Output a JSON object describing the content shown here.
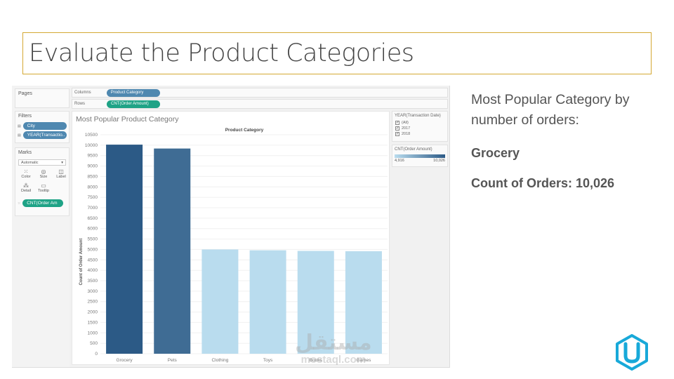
{
  "slide": {
    "title": "Evaluate the Product Categories"
  },
  "side": {
    "question": "Most Popular Category by number of orders:",
    "answer": "Grocery",
    "count_label": "Count of Orders: 10,026"
  },
  "tableau": {
    "pages_label": "Pages",
    "filters_label": "Filters",
    "filters": [
      "City",
      "YEAR(Transactio.."
    ],
    "marks_label": "Marks",
    "marks_type": "Automatic",
    "marks_buttons": [
      {
        "icon": "color-icon",
        "glyph": "⁙",
        "label": "Color"
      },
      {
        "icon": "size-icon",
        "glyph": "◎",
        "label": "Size"
      },
      {
        "icon": "label-icon",
        "glyph": "◫",
        "label": "Label"
      },
      {
        "icon": "detail-icon",
        "glyph": "⁂",
        "label": "Detail"
      },
      {
        "icon": "tooltip-icon",
        "glyph": "▭",
        "label": "Tooltip"
      }
    ],
    "marks_field": "CNT(Order Am",
    "columns_label": "Columns",
    "columns_pill": "Product Category",
    "rows_label": "Rows",
    "rows_pill": "CNT(Order Amount)",
    "view_title": "Most Popular Product Category",
    "filter_card": {
      "title": "YEAR(Transaction Date)",
      "options": [
        {
          "label": "(All)",
          "checked": "✓"
        },
        {
          "label": "2017",
          "checked": "✓"
        },
        {
          "label": "2018",
          "checked": "✓"
        }
      ]
    },
    "legend": {
      "title": "CNT(Order Amount)",
      "min_label": "4,916",
      "max_label": "10,026"
    }
  },
  "watermark": {
    "arabic": "مستقل",
    "latin": "mostaql.com"
  },
  "colors": {
    "title_border": "#d4a833",
    "bar_max": "#2c5a86",
    "bar_min": "#b9dcee",
    "logo": "#18a9d9"
  },
  "chart_data": {
    "type": "bar",
    "title": "Product Category",
    "xlabel": "",
    "ylabel": "Count of Order Amount",
    "categories": [
      "Grocery",
      "Pets",
      "Clothing",
      "Toys",
      "Books",
      "Games"
    ],
    "values": [
      10026,
      9840,
      5000,
      4960,
      4930,
      4916
    ],
    "yticks": [
      "10500",
      "10000",
      "9500",
      "9000",
      "8500",
      "8000",
      "7500",
      "7000",
      "6500",
      "6000",
      "5500",
      "5000",
      "4500",
      "4000",
      "3500",
      "3000",
      "2500",
      "2000",
      "1500",
      "1000",
      "500",
      "0"
    ],
    "ylim": [
      0,
      10500
    ],
    "color_scale": [
      4916,
      10026
    ]
  }
}
